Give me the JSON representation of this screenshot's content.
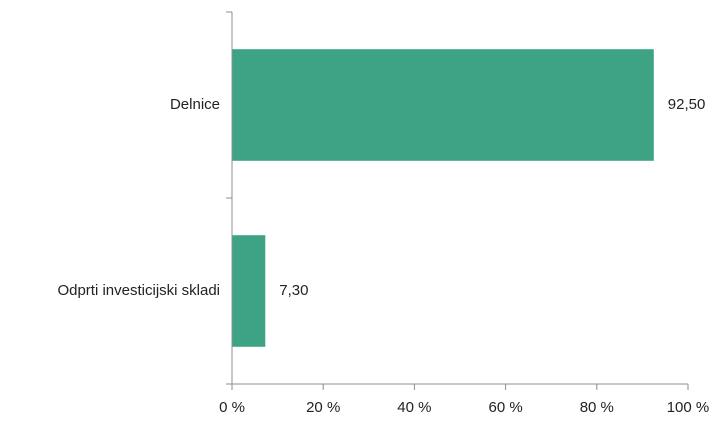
{
  "chart_data": {
    "type": "bar",
    "orientation": "horizontal",
    "categories": [
      "Delnice",
      "Odprti investicijski skladi"
    ],
    "values": [
      92.5,
      7.3
    ],
    "value_labels": [
      "92,50",
      "7,30"
    ],
    "xlim": [
      0,
      100
    ],
    "xticks": [
      0,
      20,
      40,
      60,
      80,
      100
    ],
    "xtick_labels": [
      "0 %",
      "20 %",
      "40 %",
      "60 %",
      "80 %",
      "100 %"
    ],
    "title": "",
    "xlabel": "",
    "ylabel": "",
    "grid": false,
    "bar_color": "#3da384",
    "axis_color": "#8c8c8c"
  }
}
